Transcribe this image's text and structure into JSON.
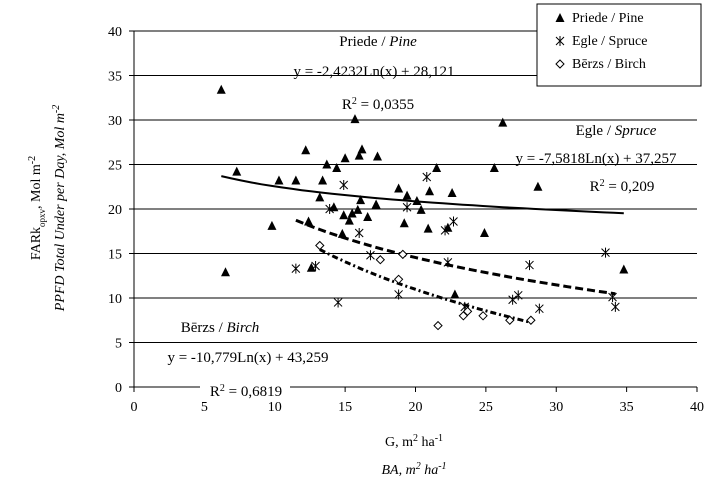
{
  "chart_data": {
    "type": "scatter",
    "xlabel_line1": "G, m² ha⁻¹",
    "xlabel_line2": "BA, m² ha⁻¹",
    "ylabel_line1": "FARk<sub>opxv</sub>, Mol m⁻²",
    "ylabel_line1_plain": "FARkopxv, Mol m⁻²",
    "ylabel_line2": "PPFD Total Under per Day, Mol m⁻²",
    "xlim": [
      0,
      40
    ],
    "ylim": [
      0,
      40
    ],
    "x_ticks": [
      0,
      5,
      10,
      15,
      20,
      25,
      30,
      35,
      40
    ],
    "y_ticks": [
      0,
      5,
      10,
      15,
      20,
      25,
      30,
      35,
      40
    ],
    "x_tick_labels": [
      "0",
      "5",
      "10",
      "15",
      "20",
      "25",
      "30",
      "35",
      "40"
    ],
    "y_tick_labels": [
      "0",
      "5",
      "10",
      "15",
      "20",
      "25",
      "30",
      "35",
      "40"
    ],
    "grid": "horizontal",
    "legend_position": "top-right",
    "legend": [
      {
        "label": "Priede / Pine",
        "marker": "triangle"
      },
      {
        "label": "Egle / Spruce",
        "marker": "star"
      },
      {
        "label": "Bērzs / Birch",
        "marker": "diamond"
      }
    ],
    "series": [
      {
        "name": "Priede / Pine",
        "marker": "triangle",
        "points": [
          [
            6.2,
            33.4
          ],
          [
            6.5,
            12.9
          ],
          [
            7.3,
            24.2
          ],
          [
            9.8,
            18.1
          ],
          [
            10.3,
            23.2
          ],
          [
            11.5,
            23.2
          ],
          [
            12.2,
            26.6
          ],
          [
            12.4,
            18.6
          ],
          [
            12.6,
            13.4
          ],
          [
            13.2,
            21.3
          ],
          [
            13.4,
            23.2
          ],
          [
            13.7,
            25
          ],
          [
            14.2,
            20.2
          ],
          [
            14.4,
            24.6
          ],
          [
            14.8,
            17.2
          ],
          [
            14.9,
            19.3
          ],
          [
            15,
            25.7
          ],
          [
            15.3,
            18.7
          ],
          [
            15.5,
            19.5
          ],
          [
            15.7,
            30.1
          ],
          [
            15.9,
            19.9
          ],
          [
            16,
            26
          ],
          [
            16.2,
            26.7
          ],
          [
            16.1,
            21
          ],
          [
            16.6,
            19.1
          ],
          [
            17.2,
            20.5
          ],
          [
            17.3,
            25.9
          ],
          [
            18.8,
            22.3
          ],
          [
            19.2,
            18.4
          ],
          [
            19.4,
            21.5
          ],
          [
            20.1,
            20.9
          ],
          [
            20.4,
            19.9
          ],
          [
            20.9,
            17.8
          ],
          [
            21,
            22
          ],
          [
            21.5,
            24.6
          ],
          [
            22.3,
            17.9
          ],
          [
            22.6,
            21.8
          ],
          [
            22.8,
            10.4
          ],
          [
            24.9,
            17.3
          ],
          [
            25.6,
            24.6
          ],
          [
            26.2,
            29.7
          ],
          [
            28.7,
            22.5
          ],
          [
            34.8,
            13.2
          ]
        ]
      },
      {
        "name": "Egle / Spruce",
        "marker": "star",
        "points": [
          [
            11.5,
            13.3
          ],
          [
            12.9,
            13.6
          ],
          [
            13.9,
            20
          ],
          [
            14.5,
            9.5
          ],
          [
            14.9,
            22.7
          ],
          [
            16,
            17.3
          ],
          [
            16.8,
            14.8
          ],
          [
            18.8,
            10.4
          ],
          [
            19.4,
            20.2
          ],
          [
            20.8,
            23.6
          ],
          [
            22.1,
            17.6
          ],
          [
            22.3,
            14
          ],
          [
            22.7,
            18.6
          ],
          [
            23.5,
            9
          ],
          [
            26.9,
            9.8
          ],
          [
            27.3,
            10.3
          ],
          [
            28.1,
            13.7
          ],
          [
            28.8,
            8.8
          ],
          [
            33.5,
            15.1
          ],
          [
            34,
            10.1
          ],
          [
            34.2,
            9
          ]
        ]
      },
      {
        "name": "Bērzs / Birch",
        "marker": "diamond",
        "points": [
          [
            13.2,
            15.9
          ],
          [
            17.5,
            14.3
          ],
          [
            18.8,
            12.1
          ],
          [
            19.1,
            14.9
          ],
          [
            21.6,
            6.9
          ],
          [
            23.4,
            8
          ],
          [
            23.7,
            8.5
          ],
          [
            24.8,
            8
          ],
          [
            26.7,
            7.5
          ],
          [
            28.2,
            7.5
          ]
        ]
      }
    ],
    "trendlines": [
      {
        "series": "Priede / Pine",
        "style": "solid",
        "a": -2.4232,
        "b": 28.121,
        "x_range": [
          6.2,
          34.8
        ],
        "label_title": "Priede / ",
        "label_title_it": "Pine",
        "equation": "y = -2,4232Ln(x) + 28,121",
        "r2_prefix": "R",
        "r2_value": " = 0,0355"
      },
      {
        "series": "Egle / Spruce",
        "style": "dashed",
        "a": -7.5818,
        "b": 37.257,
        "x_range": [
          11.5,
          34.2
        ],
        "label_title": "Egle / ",
        "label_title_it": "Spruce",
        "equation": "y = -7,5818Ln(x) + 37,257",
        "r2_prefix": "R",
        "r2_value": " = 0,209"
      },
      {
        "series": "Bērzs / Birch",
        "style": "dash-dot",
        "a": -10.779,
        "b": 43.259,
        "x_range": [
          13.2,
          28.2
        ],
        "label_title": "Bērzs / ",
        "label_title_it": "Birch",
        "equation": "y = -10,779Ln(x) + 43,259",
        "r2_prefix": "R",
        "r2_value": " = 0,6819"
      }
    ]
  }
}
